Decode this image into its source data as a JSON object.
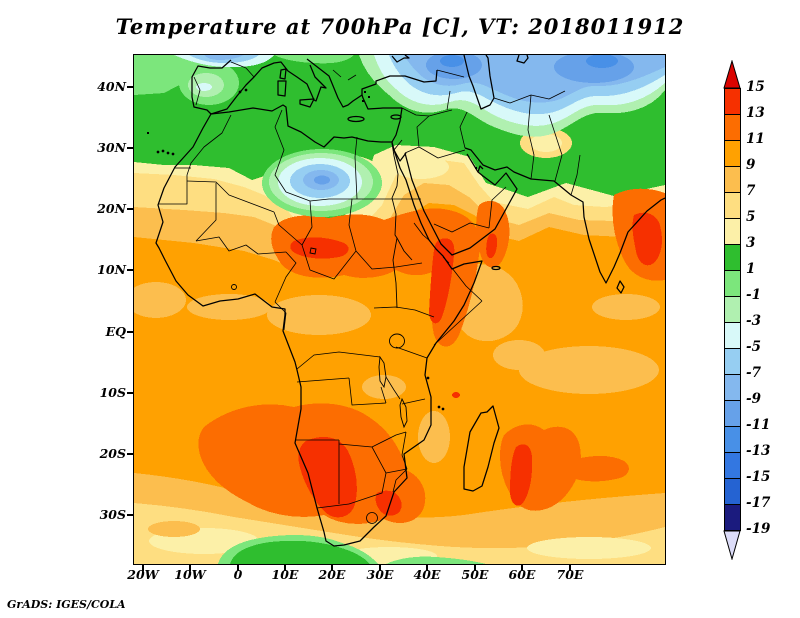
{
  "title": "Temperature at 700hPa [C], VT: 2018011912",
  "credit": "GrADS: IGES/COLA",
  "chart_data": {
    "type": "heatmap",
    "subtype": "filled-contour-weather-map",
    "variable": "Temperature",
    "pressure_level": "700hPa",
    "units": "C",
    "valid_time": "2018011912",
    "region": "Africa, Southern Europe, Middle East, Indian Ocean",
    "x_axis": {
      "ticks": [
        "20W",
        "10W",
        "0",
        "10E",
        "20E",
        "30E",
        "40E",
        "50E",
        "60E",
        "70E"
      ]
    },
    "y_axis": {
      "ticks": [
        "40N",
        "30N",
        "20N",
        "10N",
        "EQ",
        "10S",
        "20S",
        "30S"
      ]
    },
    "colorbar": {
      "orientation": "vertical-right",
      "tick_labels": [
        "15",
        "13",
        "11",
        "9",
        "7",
        "5",
        "3",
        "1",
        "-1",
        "-3",
        "-5",
        "-7",
        "-9",
        "-11",
        "-13",
        "-15",
        "-17",
        "-19"
      ],
      "levels_c": [
        15,
        13,
        11,
        9,
        7,
        5,
        3,
        1,
        -1,
        -3,
        -5,
        -7,
        -9,
        -11,
        -13,
        -15,
        -17,
        -19
      ],
      "palette_top_to_bottom": [
        "#da0300",
        "#f63000",
        "#fc6d01",
        "#ffa101",
        "#fcbe4e",
        "#fede81",
        "#fcf0a8",
        "#2fbe2f",
        "#7ce67c",
        "#b0f0b0",
        "#d8f9f9",
        "#96cef2",
        "#84b8ee",
        "#66a1e9",
        "#4890e7",
        "#3377e1",
        "#2563d2",
        "#1b1b7e",
        "#dcdcf8"
      ],
      "above_max_arrow_color": "#da0300",
      "below_min_arrow_color": "#dcdcf8"
    },
    "notable_features": [
      {
        "area": "NW Africa cold pool (Morocco/Algeria)",
        "approx_value_c": "-5 to -9"
      },
      {
        "area": "Turkey / Black Sea / Caspian / Central Asia",
        "approx_value_c": "-7 to -13"
      },
      {
        "area": "Iberia and Mediterranean Europe",
        "approx_value_c": "-3 to 1"
      },
      {
        "area": "Sahara belt and Libya/Egypt",
        "approx_value_c": "3 to 7"
      },
      {
        "area": "Sahel hot spot (Niger/Chad/Sudan)",
        "approx_value_c": "11 to 15"
      },
      {
        "area": "SW Arabia (Yemen highlands)",
        "approx_value_c": "11 to 15"
      },
      {
        "area": "India (right edge)",
        "approx_value_c": "11 to 15"
      },
      {
        "area": "Namibia / South Atlantic hot spot",
        "approx_value_c": "11 to 15"
      },
      {
        "area": "South of Madagascar hot spot",
        "approx_value_c": "11 to 15"
      },
      {
        "area": "Tropical oceans and central Africa background",
        "approx_value_c": "9 to 11"
      },
      {
        "area": "Southern Ocean band at bottom edge",
        "approx_value_c": "1 to 7"
      }
    ]
  }
}
